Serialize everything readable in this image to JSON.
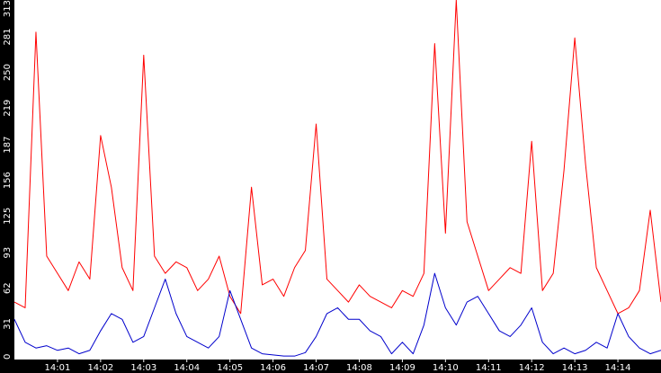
{
  "chart_data": {
    "type": "line",
    "title": "",
    "xlabel": "",
    "ylabel": "",
    "background": "#000000",
    "plot_background": "#ffffff",
    "grid": false,
    "ylim": [
      0,
      313
    ],
    "xlim": [
      "14:00:00",
      "14:15:00"
    ],
    "y_ticks": [
      "0",
      "31",
      "62",
      "93",
      "125",
      "156",
      "187",
      "219",
      "250",
      "281",
      "313"
    ],
    "x_ticks": [
      "14:01",
      "14:02",
      "14:03",
      "14:04",
      "14:05",
      "14:06",
      "14:07",
      "14:08",
      "14:09",
      "14:10",
      "14:11",
      "14:12",
      "14:13",
      "14:14"
    ],
    "x_tick_times": [
      "14:01:00",
      "14:02:00",
      "14:03:00",
      "14:04:00",
      "14:05:00",
      "14:06:00",
      "14:07:00",
      "14:08:00",
      "14:09:00",
      "14:10:00",
      "14:11:00",
      "14:12:00",
      "14:13:00",
      "14:14:00"
    ],
    "series": [
      {
        "color": "#ff0000",
        "x": [
          "14:00:00",
          "14:00:15",
          "14:00:30",
          "14:00:45",
          "14:01:00",
          "14:01:15",
          "14:01:30",
          "14:01:45",
          "14:02:00",
          "14:02:15",
          "14:02:30",
          "14:02:45",
          "14:03:00",
          "14:03:15",
          "14:03:30",
          "14:03:45",
          "14:04:00",
          "14:04:15",
          "14:04:30",
          "14:04:45",
          "14:05:00",
          "14:05:15",
          "14:05:30",
          "14:05:45",
          "14:06:00",
          "14:06:15",
          "14:06:30",
          "14:06:45",
          "14:07:00",
          "14:07:15",
          "14:07:30",
          "14:07:45",
          "14:08:00",
          "14:08:15",
          "14:08:30",
          "14:08:45",
          "14:09:00",
          "14:09:15",
          "14:09:30",
          "14:09:45",
          "14:10:00",
          "14:10:15",
          "14:10:30",
          "14:10:45",
          "14:11:00",
          "14:11:15",
          "14:11:30",
          "14:11:45",
          "14:12:00",
          "14:12:15",
          "14:12:30",
          "14:12:45",
          "14:13:00",
          "14:13:15",
          "14:13:30",
          "14:13:45",
          "14:14:00",
          "14:14:15",
          "14:14:30",
          "14:14:45",
          "14:15:00"
        ],
        "values": [
          50,
          45,
          285,
          90,
          75,
          60,
          85,
          70,
          195,
          150,
          80,
          60,
          265,
          90,
          75,
          85,
          80,
          60,
          70,
          90,
          55,
          40,
          150,
          65,
          70,
          55,
          80,
          95,
          205,
          70,
          60,
          50,
          65,
          55,
          50,
          45,
          60,
          55,
          75,
          275,
          110,
          313,
          120,
          90,
          60,
          70,
          80,
          75,
          190,
          60,
          75,
          165,
          280,
          170,
          80,
          60,
          40,
          45,
          60,
          130,
          50
        ]
      },
      {
        "color": "#0000cc",
        "x": [
          "14:00:00",
          "14:00:15",
          "14:00:30",
          "14:00:45",
          "14:01:00",
          "14:01:15",
          "14:01:30",
          "14:01:45",
          "14:02:00",
          "14:02:15",
          "14:02:30",
          "14:02:45",
          "14:03:00",
          "14:03:15",
          "14:03:30",
          "14:03:45",
          "14:04:00",
          "14:04:15",
          "14:04:30",
          "14:04:45",
          "14:05:00",
          "14:05:15",
          "14:05:30",
          "14:05:45",
          "14:06:00",
          "14:06:15",
          "14:06:30",
          "14:06:45",
          "14:07:00",
          "14:07:15",
          "14:07:30",
          "14:07:45",
          "14:08:00",
          "14:08:15",
          "14:08:30",
          "14:08:45",
          "14:09:00",
          "14:09:15",
          "14:09:30",
          "14:09:45",
          "14:10:00",
          "14:10:15",
          "14:10:30",
          "14:10:45",
          "14:11:00",
          "14:11:15",
          "14:11:30",
          "14:11:45",
          "14:12:00",
          "14:12:15",
          "14:12:30",
          "14:12:45",
          "14:13:00",
          "14:13:15",
          "14:13:30",
          "14:13:45",
          "14:14:00",
          "14:14:15",
          "14:14:30",
          "14:14:45",
          "14:15:00"
        ],
        "values": [
          35,
          15,
          10,
          12,
          8,
          10,
          5,
          8,
          25,
          40,
          35,
          15,
          20,
          45,
          70,
          40,
          20,
          15,
          10,
          20,
          60,
          35,
          10,
          5,
          4,
          3,
          3,
          6,
          20,
          40,
          45,
          35,
          35,
          25,
          20,
          5,
          15,
          5,
          30,
          75,
          45,
          30,
          50,
          55,
          40,
          25,
          20,
          30,
          45,
          15,
          5,
          10,
          5,
          8,
          15,
          10,
          40,
          20,
          10,
          5,
          8
        ]
      }
    ]
  }
}
